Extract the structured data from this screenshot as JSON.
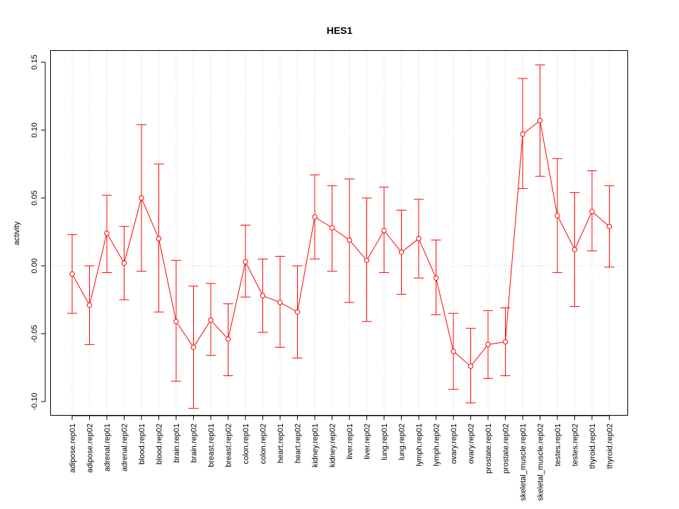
{
  "chart_data": {
    "type": "line",
    "title": "HES1",
    "xlabel": "",
    "ylabel": "activity",
    "ylim": [
      -0.113,
      0.159
    ],
    "yticks": [
      -0.1,
      -0.05,
      0.0,
      0.05,
      0.1,
      0.15
    ],
    "ytick_labels": [
      "-0.10",
      "-0.05",
      "0.00",
      "0.05",
      "0.10",
      "0.15"
    ],
    "grid": "vertical dotted at categories, horizontal dotted at 0",
    "color": "#ff0000",
    "categories": [
      "adipose.rep01",
      "adipose.rep02",
      "adrenal.rep01",
      "adrenal.rep02",
      "blood.rep01",
      "blood.rep02",
      "brain.rep01",
      "brain.rep02",
      "breast.rep01",
      "breast.rep02",
      "colon.rep01",
      "colon.rep02",
      "heart.rep01",
      "heart.rep02",
      "kidney.rep01",
      "kidney.rep02",
      "liver.rep01",
      "liver.rep02",
      "lung.rep01",
      "lung.rep02",
      "lymph.rep01",
      "lymph.rep02",
      "ovary.rep01",
      "ovary.rep02",
      "prostate.rep01",
      "prostate.rep02",
      "skeletal_muscle.rep01",
      "skeletal_muscle.rep02",
      "testes.rep01",
      "testes.rep02",
      "thyroid.rep01",
      "thyroid.rep02"
    ],
    "values": [
      -0.006,
      -0.029,
      0.024,
      0.002,
      0.05,
      0.02,
      -0.041,
      -0.06,
      -0.04,
      -0.054,
      0.003,
      -0.022,
      -0.027,
      -0.034,
      0.036,
      0.028,
      0.019,
      0.004,
      0.026,
      0.01,
      0.02,
      -0.009,
      -0.063,
      -0.074,
      -0.058,
      -0.056,
      0.097,
      0.107,
      0.037,
      0.012,
      0.04,
      0.029
    ],
    "upper": [
      0.023,
      0.0,
      0.052,
      0.029,
      0.104,
      0.075,
      0.004,
      -0.015,
      -0.013,
      -0.028,
      0.03,
      0.005,
      0.007,
      0.0,
      0.067,
      0.059,
      0.064,
      0.05,
      0.058,
      0.041,
      0.049,
      0.019,
      -0.035,
      -0.046,
      -0.033,
      -0.031,
      0.138,
      0.148,
      0.079,
      0.054,
      0.07,
      0.059
    ],
    "lower": [
      -0.035,
      -0.058,
      -0.005,
      -0.025,
      -0.004,
      -0.034,
      -0.085,
      -0.105,
      -0.066,
      -0.081,
      -0.023,
      -0.049,
      -0.06,
      -0.068,
      0.005,
      -0.004,
      -0.027,
      -0.041,
      -0.005,
      -0.021,
      -0.009,
      -0.036,
      -0.091,
      -0.101,
      -0.083,
      -0.081,
      0.057,
      0.066,
      -0.005,
      -0.03,
      0.011,
      -0.001
    ]
  }
}
